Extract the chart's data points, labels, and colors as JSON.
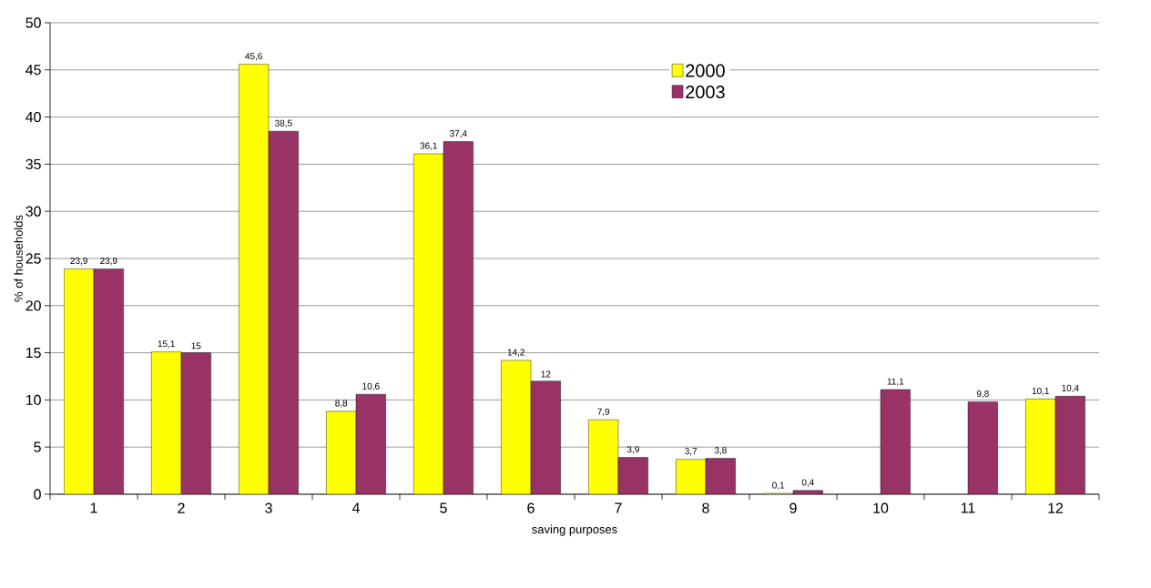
{
  "chart_data": {
    "type": "bar",
    "xlabel": "saving purposes",
    "ylabel": "% of households",
    "categories": [
      "1",
      "2",
      "3",
      "4",
      "5",
      "6",
      "7",
      "8",
      "9",
      "10",
      "11",
      "12"
    ],
    "series": [
      {
        "name": "2000",
        "color": "#ffff00",
        "values": [
          23.9,
          15.1,
          45.6,
          8.8,
          36.1,
          14.2,
          7.9,
          3.7,
          0.1,
          null,
          null,
          10.1
        ],
        "value_labels": [
          "23,9",
          "15,1",
          "45,6",
          "8,8",
          "36,1",
          "14,2",
          "7,9",
          "3,7",
          "0,1",
          null,
          null,
          "10,1"
        ]
      },
      {
        "name": "2003",
        "color": "#993366",
        "values": [
          23.9,
          15,
          38.5,
          10.6,
          37.4,
          12,
          3.9,
          3.8,
          0.4,
          11.1,
          9.8,
          10.4
        ],
        "value_labels": [
          "23,9",
          "15",
          "38,5",
          "10,6",
          "37,4",
          "12",
          "3,9",
          "3,8",
          "0,4",
          "11,1",
          "9,8",
          "10,4"
        ]
      }
    ],
    "ylim": [
      0,
      50
    ],
    "yticks": [
      0,
      5,
      10,
      15,
      20,
      25,
      30,
      35,
      40,
      45,
      50
    ],
    "grid": "y",
    "legend": "top right"
  }
}
